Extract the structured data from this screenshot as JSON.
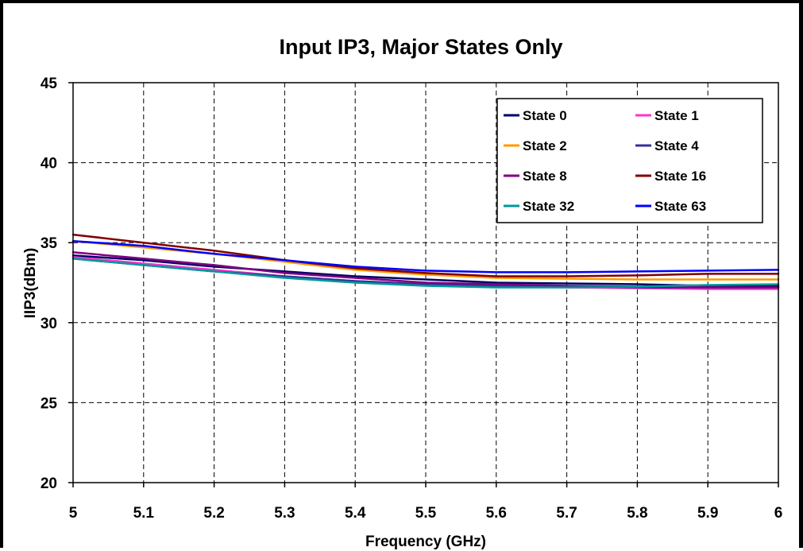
{
  "chart_data": {
    "type": "line",
    "title": "Input IP3, Major States Only",
    "xlabel": "Frequency (GHz)",
    "ylabel": "IIP3(dBm)",
    "xlim": [
      5,
      6
    ],
    "ylim": [
      20,
      45
    ],
    "x_ticks": [
      "5",
      "5.1",
      "5.2",
      "5.3",
      "5.4",
      "5.5",
      "5.6",
      "5.7",
      "5.8",
      "5.9",
      "6"
    ],
    "y_ticks": [
      "20",
      "25",
      "30",
      "35",
      "40",
      "45"
    ],
    "grid": true,
    "legend_position": "top-right",
    "x": [
      5.0,
      5.1,
      5.2,
      5.3,
      5.4,
      5.5,
      5.6,
      5.7,
      5.8,
      5.9,
      6.0
    ],
    "series": [
      {
        "name": "State 0",
        "color": "#000066",
        "values": [
          34.2,
          33.9,
          33.5,
          33.2,
          32.9,
          32.7,
          32.5,
          32.45,
          32.4,
          32.3,
          32.3
        ]
      },
      {
        "name": "State 1",
        "color": "#ff33cc",
        "values": [
          34.1,
          33.7,
          33.3,
          32.9,
          32.6,
          32.4,
          32.25,
          32.2,
          32.15,
          32.1,
          32.1
        ]
      },
      {
        "name": "State 2",
        "color": "#ff9900",
        "values": [
          35.1,
          34.7,
          34.3,
          33.8,
          33.3,
          33.0,
          32.8,
          32.75,
          32.7,
          32.7,
          32.7
        ]
      },
      {
        "name": "State 4",
        "color": "#333399",
        "values": [
          34.0,
          33.6,
          33.2,
          32.9,
          32.6,
          32.4,
          32.3,
          32.25,
          32.2,
          32.2,
          32.2
        ]
      },
      {
        "name": "State 8",
        "color": "#800080",
        "values": [
          34.4,
          34.0,
          33.6,
          33.1,
          32.8,
          32.5,
          32.4,
          32.3,
          32.25,
          32.2,
          32.2
        ]
      },
      {
        "name": "State 16",
        "color": "#800000",
        "values": [
          35.5,
          35.0,
          34.5,
          33.9,
          33.4,
          33.1,
          32.9,
          32.9,
          32.95,
          33.05,
          33.05
        ]
      },
      {
        "name": "State 32",
        "color": "#009999",
        "values": [
          34.0,
          33.6,
          33.2,
          32.8,
          32.5,
          32.3,
          32.2,
          32.2,
          32.25,
          32.35,
          32.4
        ]
      },
      {
        "name": "State 63",
        "color": "#0000ff",
        "values": [
          35.1,
          34.8,
          34.3,
          33.9,
          33.5,
          33.25,
          33.15,
          33.15,
          33.2,
          33.25,
          33.3
        ]
      }
    ]
  }
}
